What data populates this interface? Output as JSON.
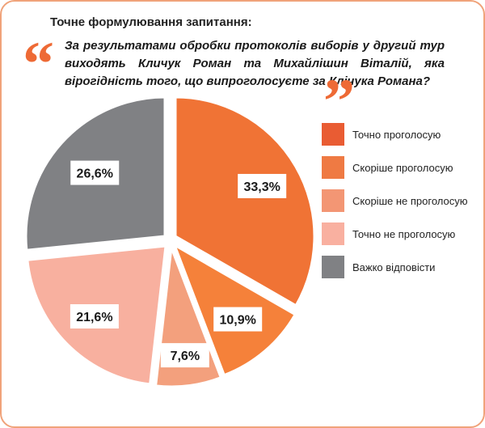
{
  "header": {
    "heading": "Точне формулювання запитання:",
    "question": "За результатами обробки протоколів виборів у другий тур виходять Кличук Роман та Михайлішин Віталій, яка вірогідність того, що випроголосуєте за Клічука Романа?",
    "open_quote": "“",
    "close_quote": "”"
  },
  "chart_data": {
    "type": "pie",
    "categories": [
      "Точно проголосую",
      "Скоріше проголосую",
      "Скоріше не проголосую",
      "Точно не проголосую",
      "Важко відповісти"
    ],
    "values": [
      33.3,
      10.9,
      7.6,
      21.6,
      26.6
    ],
    "value_labels": [
      "33,3%",
      "10,9%",
      "7,6%",
      "21,6%",
      "26,6%"
    ],
    "colors": [
      "#f07335",
      "#f5813a",
      "#f3a07d",
      "#f8b09f",
      "#808184"
    ],
    "legend_colors": [
      "#e95c33",
      "#ef7a43",
      "#f39674",
      "#f9b0a0",
      "#808184"
    ],
    "legend_position": "right"
  }
}
